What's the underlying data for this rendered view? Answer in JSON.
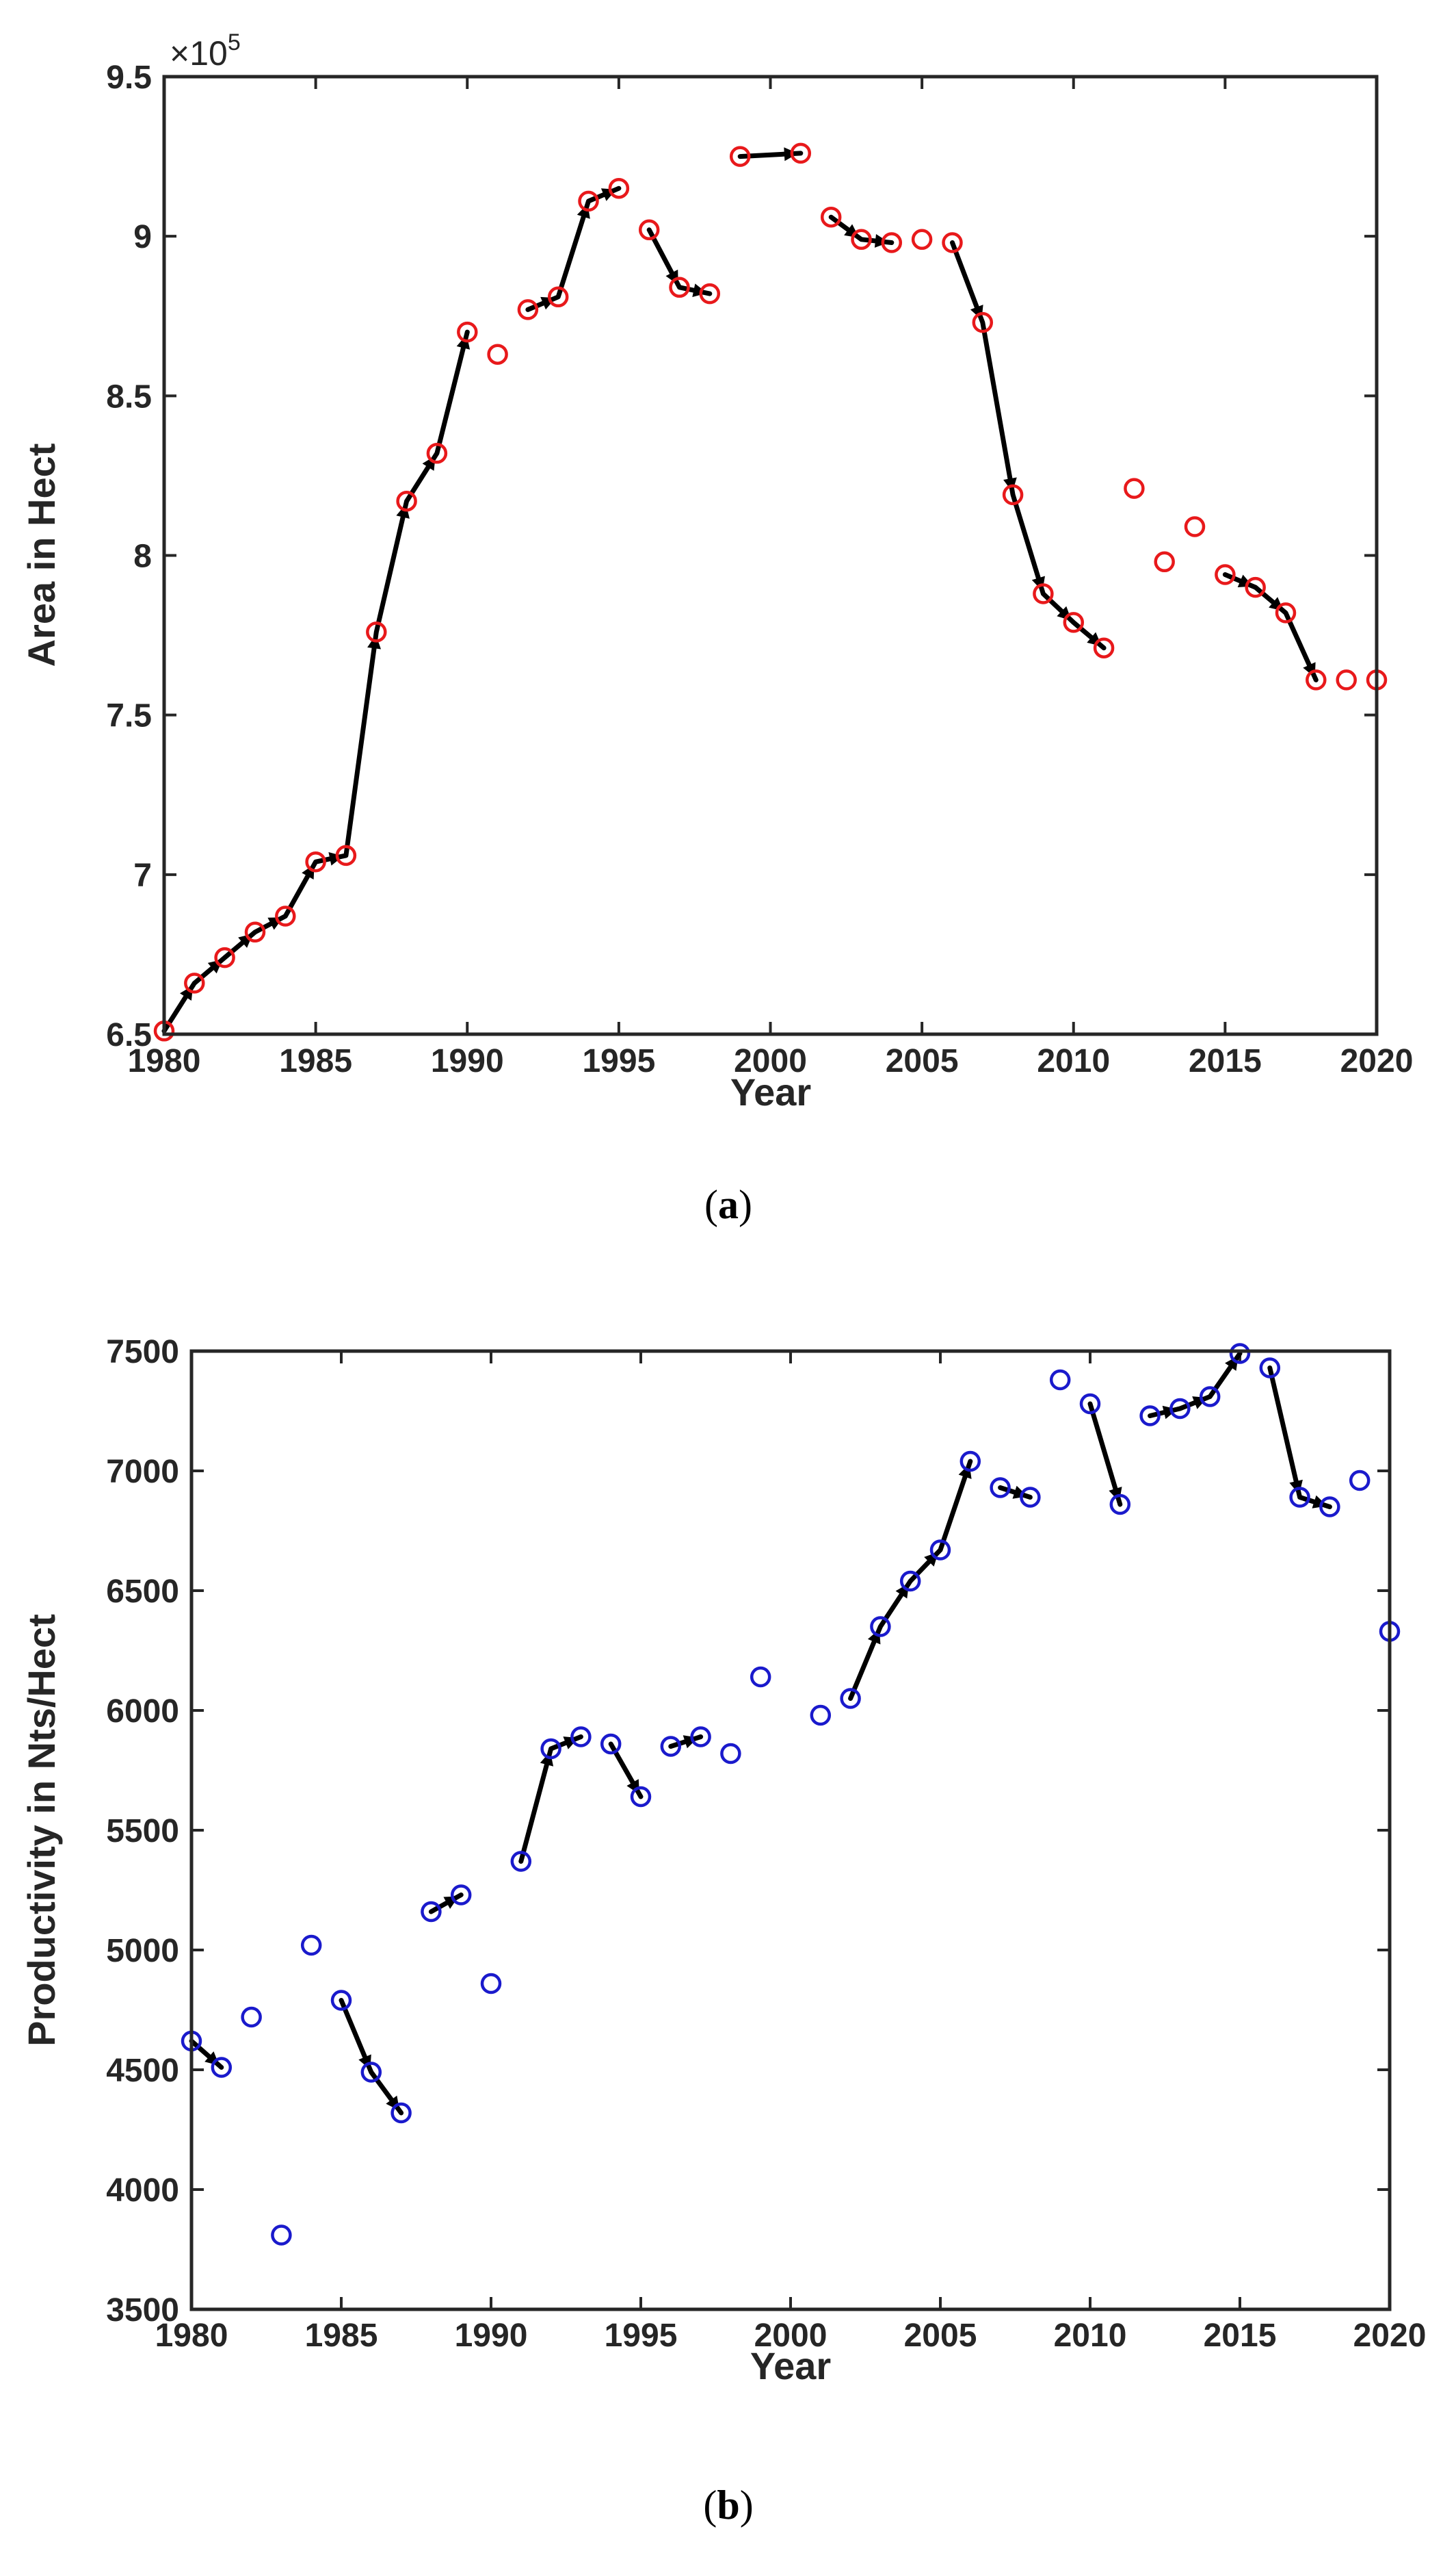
{
  "chart_data": [
    {
      "id": "a",
      "type": "scatter",
      "caption_letter": "a",
      "xlabel": "Year",
      "ylabel": "Area in Hect",
      "exponent_base": "×10",
      "exponent_power": "5",
      "xlim": [
        1980,
        2020
      ],
      "ylim": [
        6.5,
        9.5
      ],
      "xticks": [
        1980,
        1985,
        1990,
        1995,
        2000,
        2005,
        2010,
        2015,
        2020
      ],
      "yticks": [
        "6.5",
        "7",
        "7.5",
        "8",
        "8.5",
        "9",
        "9.5"
      ],
      "marker_color": "#e8191b",
      "series": [
        {
          "name": "Area",
          "x": [
            1980,
            1981,
            1982,
            1983,
            1984,
            1985,
            1986,
            1987,
            1988,
            1989,
            1990,
            1991,
            1992,
            1993,
            1994,
            1995,
            1996,
            1997,
            1998,
            1999,
            2001,
            2002,
            2003,
            2004,
            2005,
            2006,
            2007,
            2008,
            2009,
            2010,
            2011,
            2012,
            2013,
            2014,
            2015,
            2016,
            2017,
            2018,
            2019,
            2020
          ],
          "y": [
            6.51,
            6.66,
            6.74,
            6.82,
            6.87,
            7.04,
            7.06,
            7.76,
            8.17,
            8.32,
            8.7,
            8.63,
            8.77,
            8.81,
            9.11,
            9.15,
            9.02,
            8.84,
            8.82,
            9.25,
            9.26,
            9.06,
            8.99,
            8.98,
            8.99,
            8.98,
            8.73,
            8.19,
            7.88,
            7.79,
            7.71,
            8.21,
            7.98,
            8.09,
            7.94,
            7.9,
            7.82,
            7.61,
            7.61,
            7.61
          ]
        }
      ],
      "trend_segments": [
        [
          1980,
          1981,
          1982,
          1983,
          1984,
          1985,
          1986,
          1987,
          1988,
          1989,
          1990
        ],
        [
          1992,
          1993,
          1994,
          1995
        ],
        [
          1996,
          1997,
          1998
        ],
        [
          1999,
          2001
        ],
        [
          2002,
          2003,
          2004
        ],
        [
          2006,
          2007,
          2008,
          2009,
          2010,
          2011
        ],
        [
          2015,
          2016,
          2017,
          2018
        ]
      ]
    },
    {
      "id": "b",
      "type": "scatter",
      "caption_letter": "b",
      "xlabel": "Year",
      "ylabel": "Productivity in Nts/Hect",
      "xlim": [
        1980,
        2020
      ],
      "ylim": [
        3500,
        7500
      ],
      "xticks": [
        1980,
        1985,
        1990,
        1995,
        2000,
        2005,
        2010,
        2015,
        2020
      ],
      "yticks": [
        "3500",
        "4000",
        "4500",
        "5000",
        "5500",
        "6000",
        "6500",
        "7000",
        "7500"
      ],
      "marker_color": "#1a1acc",
      "series": [
        {
          "name": "Productivity",
          "x": [
            1980,
            1981,
            1982,
            1983,
            1984,
            1985,
            1986,
            1987,
            1988,
            1989,
            1990,
            1991,
            1992,
            1993,
            1994,
            1995,
            1996,
            1997,
            1998,
            1999,
            2001,
            2002,
            2003,
            2004,
            2005,
            2006,
            2007,
            2008,
            2009,
            2010,
            2011,
            2012,
            2013,
            2014,
            2015,
            2016,
            2017,
            2018,
            2019,
            2020
          ],
          "y": [
            4620,
            4510,
            4720,
            3810,
            5020,
            4790,
            4490,
            4320,
            5160,
            5230,
            4860,
            5370,
            5840,
            5890,
            5860,
            5640,
            5850,
            5890,
            5820,
            6140,
            5980,
            6050,
            6350,
            6540,
            6670,
            7040,
            6930,
            6890,
            7380,
            7280,
            6860,
            7230,
            7260,
            7310,
            7490,
            7430,
            6890,
            6850,
            6960,
            6330
          ]
        }
      ],
      "trend_segments": [
        [
          1980,
          1981
        ],
        [
          1985,
          1986,
          1987
        ],
        [
          1988,
          1989
        ],
        [
          1991,
          1992,
          1993
        ],
        [
          1994,
          1995
        ],
        [
          1996,
          1997
        ],
        [
          2002,
          2003,
          2004,
          2005,
          2006
        ],
        [
          2007,
          2008
        ],
        [
          2010,
          2011
        ],
        [
          2012,
          2013,
          2014,
          2015
        ],
        [
          2016,
          2017,
          2018
        ]
      ]
    }
  ]
}
